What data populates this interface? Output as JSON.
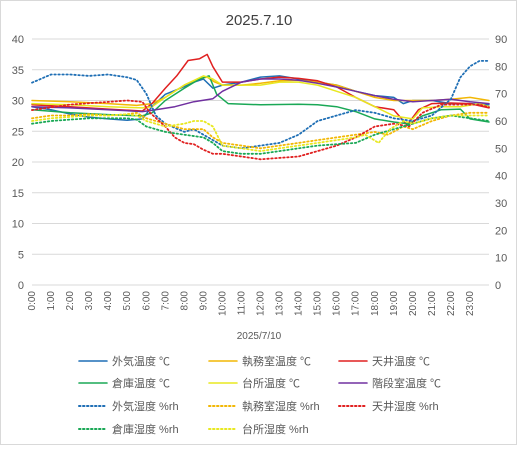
{
  "chart_data": {
    "type": "line",
    "title": "2025.7.10",
    "xlabel": "2025/7/10",
    "x_ticks": [
      "0:00",
      "1:00",
      "2:00",
      "3:00",
      "4:00",
      "5:00",
      "6:00",
      "7:00",
      "8:00",
      "9:00",
      "10:00",
      "11:00",
      "12:00",
      "13:00",
      "14:00",
      "15:00",
      "16:00",
      "17:00",
      "18:00",
      "19:00",
      "20:00",
      "21:00",
      "22:00",
      "23:00"
    ],
    "x_range_hours": [
      0,
      24
    ],
    "y_left": {
      "ticks": [
        "0",
        "5",
        "10",
        "15",
        "20",
        "25",
        "30",
        "35",
        "40"
      ],
      "range": [
        0,
        40
      ]
    },
    "y_right": {
      "ticks": [
        "0",
        "10",
        "20",
        "30",
        "40",
        "50",
        "60",
        "70",
        "80",
        "90"
      ],
      "range": [
        0,
        90
      ]
    },
    "grid": "horizontal",
    "legend_position": "bottom",
    "series": [
      {
        "name": "外気温度 ℃",
        "axis": "left",
        "color": "#1f6fb5",
        "dash": "solid",
        "points": [
          [
            0,
            29
          ],
          [
            1,
            28.5
          ],
          [
            2,
            27.8
          ],
          [
            3,
            27.3
          ],
          [
            4,
            27
          ],
          [
            5,
            26.8
          ],
          [
            5.8,
            27
          ],
          [
            6.3,
            29
          ],
          [
            7,
            31
          ],
          [
            7.8,
            32
          ],
          [
            8.5,
            33
          ],
          [
            9,
            33.5
          ],
          [
            9.5,
            32
          ],
          [
            10,
            32.5
          ],
          [
            11,
            33
          ],
          [
            12,
            33.8
          ],
          [
            13,
            34
          ],
          [
            14,
            33.5
          ],
          [
            15,
            33
          ],
          [
            16,
            32.5
          ],
          [
            17,
            31.5
          ],
          [
            18,
            30.8
          ],
          [
            19,
            30.5
          ],
          [
            19.5,
            29.5
          ],
          [
            20,
            30
          ],
          [
            21,
            30
          ],
          [
            22,
            29.5
          ],
          [
            23,
            29.5
          ],
          [
            24,
            29.3
          ]
        ]
      },
      {
        "name": "執務室温度 ℃",
        "axis": "left",
        "color": "#f2b705",
        "dash": "solid",
        "points": [
          [
            0,
            30
          ],
          [
            2,
            29.8
          ],
          [
            4,
            29.5
          ],
          [
            5.5,
            29.2
          ],
          [
            6.3,
            29.5
          ],
          [
            7,
            30.5
          ],
          [
            8,
            32.5
          ],
          [
            8.7,
            33.5
          ],
          [
            9.2,
            33.8
          ],
          [
            9.6,
            33
          ],
          [
            10,
            32.5
          ],
          [
            11,
            32.5
          ],
          [
            12,
            32.8
          ],
          [
            13,
            33.2
          ],
          [
            14,
            33.3
          ],
          [
            15,
            33
          ],
          [
            16,
            32.5
          ],
          [
            17,
            31.5
          ],
          [
            18,
            30.5
          ],
          [
            19,
            30
          ],
          [
            20,
            30
          ],
          [
            21,
            30
          ],
          [
            22,
            30.2
          ],
          [
            23,
            30.5
          ],
          [
            24,
            30
          ]
        ]
      },
      {
        "name": "天井温度 ℃",
        "axis": "left",
        "color": "#e02020",
        "dash": "solid",
        "points": [
          [
            0,
            29.3
          ],
          [
            2,
            29
          ],
          [
            4,
            28.6
          ],
          [
            5.8,
            28.3
          ],
          [
            6.3,
            29.5
          ],
          [
            7,
            32
          ],
          [
            7.6,
            34
          ],
          [
            8.2,
            36.5
          ],
          [
            8.8,
            36.8
          ],
          [
            9.2,
            37.5
          ],
          [
            9.5,
            35.5
          ],
          [
            10,
            33
          ],
          [
            11,
            33
          ],
          [
            12,
            33.5
          ],
          [
            13,
            33.8
          ],
          [
            14,
            33.6
          ],
          [
            15,
            33.2
          ],
          [
            16,
            32.2
          ],
          [
            17,
            30.5
          ],
          [
            18,
            29
          ],
          [
            19,
            28.5
          ],
          [
            19.7,
            26
          ],
          [
            20.3,
            28.5
          ],
          [
            21,
            29.5
          ],
          [
            22,
            29.6
          ],
          [
            23,
            29.5
          ],
          [
            24,
            28.8
          ]
        ]
      },
      {
        "name": "倉庫温度 ℃",
        "axis": "left",
        "color": "#1aa856",
        "dash": "solid",
        "points": [
          [
            0,
            28.5
          ],
          [
            2,
            28
          ],
          [
            4,
            27.7
          ],
          [
            5.8,
            27.5
          ],
          [
            6.3,
            28
          ],
          [
            7,
            30
          ],
          [
            8,
            32
          ],
          [
            8.8,
            33.5
          ],
          [
            9.3,
            34
          ],
          [
            9.7,
            31
          ],
          [
            10.3,
            29.5
          ],
          [
            12,
            29.3
          ],
          [
            14,
            29.4
          ],
          [
            15,
            29.3
          ],
          [
            16,
            29
          ],
          [
            17,
            28.2
          ],
          [
            18,
            27
          ],
          [
            19,
            26.5
          ],
          [
            19.8,
            26.2
          ],
          [
            20.5,
            27.5
          ],
          [
            21.5,
            28.5
          ],
          [
            22.5,
            28.6
          ],
          [
            23,
            27
          ],
          [
            24,
            26.5
          ]
        ]
      },
      {
        "name": "台所温度 ℃",
        "axis": "left",
        "color": "#e8e820",
        "dash": "solid",
        "points": [
          [
            0,
            29.5
          ],
          [
            2,
            29.3
          ],
          [
            4,
            29
          ],
          [
            5.8,
            28.8
          ],
          [
            6.3,
            29
          ],
          [
            7,
            30.5
          ],
          [
            8,
            32.5
          ],
          [
            9,
            34
          ],
          [
            9.5,
            33.5
          ],
          [
            10,
            32.5
          ],
          [
            11,
            32.5
          ],
          [
            12,
            32.5
          ],
          [
            13,
            33
          ],
          [
            14,
            33
          ],
          [
            15,
            32.5
          ],
          [
            16,
            31.5
          ],
          [
            17,
            30.5
          ],
          [
            18,
            29
          ],
          [
            19,
            27.5
          ],
          [
            20,
            27
          ],
          [
            20.5,
            28.8
          ],
          [
            21.5,
            29
          ],
          [
            22.5,
            29
          ],
          [
            23.5,
            29.5
          ],
          [
            24,
            29
          ]
        ]
      },
      {
        "name": "階段室温度 ℃",
        "axis": "left",
        "color": "#7030a0",
        "dash": "solid",
        "points": [
          [
            0,
            29
          ],
          [
            2,
            28.8
          ],
          [
            4,
            28.5
          ],
          [
            5.8,
            28.2
          ],
          [
            6.5,
            28.5
          ],
          [
            7.5,
            29
          ],
          [
            8.5,
            29.8
          ],
          [
            9.5,
            30.3
          ],
          [
            10,
            31.5
          ],
          [
            11,
            33
          ],
          [
            12,
            33.5
          ],
          [
            13,
            33.5
          ],
          [
            14,
            33.3
          ],
          [
            15,
            32.8
          ],
          [
            16,
            32.2
          ],
          [
            17,
            31.5
          ],
          [
            18,
            30.8
          ],
          [
            19,
            30.2
          ],
          [
            20,
            29.8
          ],
          [
            21,
            30
          ],
          [
            22,
            30.2
          ],
          [
            23,
            29.8
          ],
          [
            24,
            29.5
          ]
        ]
      },
      {
        "name": "外気湿度 %rh",
        "axis": "right",
        "color": "#1f6fb5",
        "dash": "dotted",
        "points": [
          [
            0,
            74
          ],
          [
            0.5,
            75.5
          ],
          [
            1,
            77
          ],
          [
            2,
            77
          ],
          [
            3,
            76.5
          ],
          [
            4,
            77
          ],
          [
            5,
            76
          ],
          [
            5.5,
            75
          ],
          [
            6,
            70
          ],
          [
            6.5,
            62
          ],
          [
            7,
            59
          ],
          [
            8,
            56
          ],
          [
            8.5,
            57
          ],
          [
            9,
            55
          ],
          [
            9.5,
            53
          ],
          [
            10,
            51
          ],
          [
            11,
            50
          ],
          [
            12,
            51
          ],
          [
            13,
            52
          ],
          [
            14,
            55
          ],
          [
            15,
            60
          ],
          [
            16,
            62
          ],
          [
            17,
            64
          ],
          [
            18,
            63
          ],
          [
            19,
            61
          ],
          [
            20,
            60
          ],
          [
            21,
            62
          ],
          [
            22,
            68
          ],
          [
            22.5,
            76
          ],
          [
            23,
            80
          ],
          [
            23.5,
            82
          ],
          [
            24,
            82
          ]
        ]
      },
      {
        "name": "執務室湿度 %rh",
        "axis": "right",
        "color": "#f2b705",
        "dash": "dotted",
        "points": [
          [
            0,
            61
          ],
          [
            1,
            62
          ],
          [
            2,
            62
          ],
          [
            3,
            62.5
          ],
          [
            4,
            62
          ],
          [
            5,
            62.5
          ],
          [
            5.5,
            63
          ],
          [
            6,
            61
          ],
          [
            6.5,
            60
          ],
          [
            7,
            59
          ],
          [
            7.5,
            58
          ],
          [
            8,
            57
          ],
          [
            9,
            57
          ],
          [
            9.5,
            54
          ],
          [
            10,
            52
          ],
          [
            11,
            51
          ],
          [
            12,
            50
          ],
          [
            13,
            51
          ],
          [
            14,
            52
          ],
          [
            15,
            53
          ],
          [
            16,
            54
          ],
          [
            17,
            55
          ],
          [
            18,
            56
          ],
          [
            18.7,
            55
          ],
          [
            19.5,
            58
          ],
          [
            20,
            57
          ],
          [
            21,
            60
          ],
          [
            22,
            62
          ],
          [
            23,
            63
          ],
          [
            24,
            63
          ]
        ]
      },
      {
        "name": "天井湿度 %rh",
        "axis": "right",
        "color": "#e02020",
        "dash": "dotted",
        "points": [
          [
            0,
            64
          ],
          [
            1,
            65
          ],
          [
            2,
            66
          ],
          [
            3,
            66.5
          ],
          [
            4,
            67
          ],
          [
            5,
            67.5
          ],
          [
            5.8,
            67
          ],
          [
            6.2,
            63
          ],
          [
            7,
            58
          ],
          [
            7.5,
            54
          ],
          [
            8,
            52
          ],
          [
            8.5,
            51.5
          ],
          [
            9,
            49.5
          ],
          [
            9.5,
            48
          ],
          [
            10,
            48
          ],
          [
            11,
            47
          ],
          [
            12,
            46
          ],
          [
            13,
            46.5
          ],
          [
            14,
            47
          ],
          [
            15,
            49
          ],
          [
            16,
            51
          ],
          [
            17,
            54
          ],
          [
            18,
            58
          ],
          [
            19,
            59
          ],
          [
            19.8,
            58
          ],
          [
            20.5,
            63
          ],
          [
            21.5,
            66
          ],
          [
            22.5,
            66
          ],
          [
            23.5,
            66
          ],
          [
            24,
            65
          ]
        ]
      },
      {
        "name": "倉庫湿度 %rh",
        "axis": "right",
        "color": "#1aa856",
        "dash": "dotted",
        "points": [
          [
            0,
            59
          ],
          [
            1,
            60
          ],
          [
            2,
            60.5
          ],
          [
            3,
            61
          ],
          [
            4,
            61
          ],
          [
            5,
            61
          ],
          [
            5.5,
            60.5
          ],
          [
            6,
            58
          ],
          [
            7,
            56
          ],
          [
            8,
            55
          ],
          [
            9,
            54
          ],
          [
            9.5,
            52
          ],
          [
            10,
            49
          ],
          [
            11,
            48
          ],
          [
            12,
            48
          ],
          [
            13,
            49
          ],
          [
            14,
            50
          ],
          [
            15,
            51
          ],
          [
            16,
            51.5
          ],
          [
            17,
            52
          ],
          [
            18,
            55
          ],
          [
            19,
            57
          ],
          [
            20,
            59
          ],
          [
            21,
            61
          ],
          [
            22,
            62
          ],
          [
            23,
            61
          ],
          [
            24,
            60
          ]
        ]
      },
      {
        "name": "台所湿度 %rh",
        "axis": "right",
        "color": "#e8e820",
        "dash": "dotted",
        "points": [
          [
            0,
            60
          ],
          [
            1,
            61
          ],
          [
            2,
            61.5
          ],
          [
            3,
            62
          ],
          [
            4,
            62
          ],
          [
            5,
            62.5
          ],
          [
            5.5,
            62
          ],
          [
            6,
            60
          ],
          [
            7,
            58
          ],
          [
            8,
            59
          ],
          [
            8.5,
            60
          ],
          [
            9,
            60
          ],
          [
            9.5,
            58
          ],
          [
            10,
            51
          ],
          [
            11,
            50
          ],
          [
            12,
            49
          ],
          [
            13,
            50
          ],
          [
            14,
            51
          ],
          [
            15,
            52
          ],
          [
            16,
            53
          ],
          [
            17,
            54
          ],
          [
            17.5,
            55
          ],
          [
            18.2,
            52
          ],
          [
            18.8,
            57
          ],
          [
            19.5,
            60
          ],
          [
            20,
            59
          ],
          [
            21,
            61
          ],
          [
            22,
            62
          ],
          [
            23,
            62
          ],
          [
            24,
            62
          ]
        ]
      }
    ]
  }
}
